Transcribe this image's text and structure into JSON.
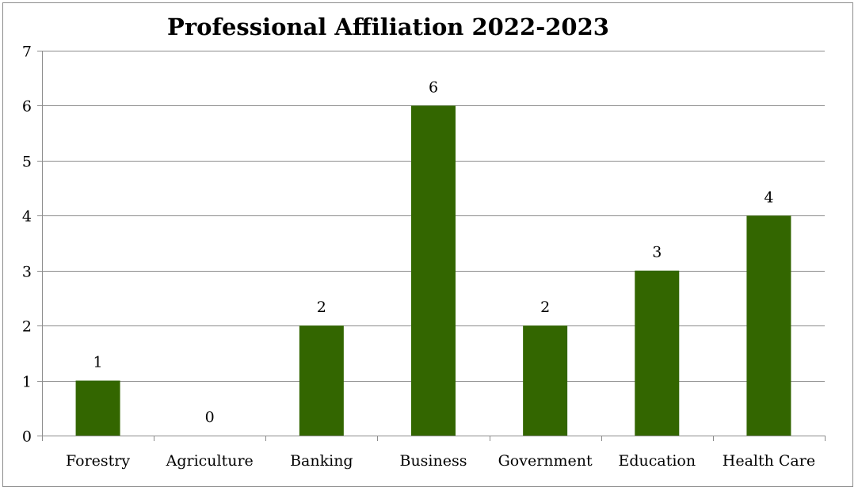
{
  "chart_data": {
    "type": "bar",
    "title": "Professional Affiliation 2022-2023",
    "xlabel": "",
    "ylabel": "",
    "categories": [
      "Forestry",
      "Agriculture",
      "Banking",
      "Business",
      "Government",
      "Education",
      "Health Care"
    ],
    "values": [
      1,
      0,
      2,
      6,
      2,
      3,
      4
    ],
    "data_labels": [
      "1",
      "0",
      "2",
      "6",
      "2",
      "3",
      "4"
    ],
    "ylim": [
      0,
      7
    ],
    "yticks": [
      "0",
      "1",
      "2",
      "3",
      "4",
      "5",
      "6",
      "7"
    ],
    "grid": true,
    "legend": "none",
    "bar_color": "#336600"
  }
}
